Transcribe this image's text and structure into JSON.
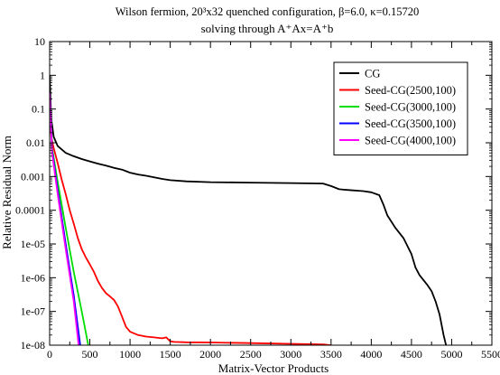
{
  "chart_data": {
    "type": "line",
    "title_line1": "Wilson fermion, 20³x32 quenched configuration, β=6.0,  κ=0.15720",
    "title_line2": "solving through  A⁺Ax=A⁺b",
    "xlabel": "Matrix-Vector Products",
    "ylabel": "Relative Residual Norm",
    "xlim": [
      0,
      5500
    ],
    "ylim": [
      1e-08,
      10
    ],
    "y_scale": "log",
    "grid": false,
    "legend_position": "top-right",
    "x_ticks": [
      0,
      500,
      1000,
      1500,
      2000,
      2500,
      3000,
      3500,
      4000,
      4500,
      5000,
      5500
    ],
    "x_tick_labels": [
      "0",
      "500",
      "1000",
      "1500",
      "2000",
      "2500",
      "3000",
      "3500",
      "4000",
      "4500",
      "5000",
      "5500"
    ],
    "y_ticks": [
      10,
      1,
      0.1,
      0.01,
      0.001,
      0.0001,
      1e-05,
      1e-06,
      1e-07,
      1e-08
    ],
    "y_tick_labels": [
      "10",
      "1",
      "0.1",
      "0.01",
      "0.001",
      "0.0001",
      "1e-05",
      "1e-06",
      "1e-07",
      "1e-08"
    ],
    "series": [
      {
        "name": "CG",
        "color": "#000000",
        "points": [
          [
            0,
            1
          ],
          [
            20,
            0.05
          ],
          [
            50,
            0.015
          ],
          [
            100,
            0.008
          ],
          [
            200,
            0.005
          ],
          [
            300,
            0.004
          ],
          [
            400,
            0.0033
          ],
          [
            500,
            0.0028
          ],
          [
            600,
            0.0024
          ],
          [
            700,
            0.0021
          ],
          [
            800,
            0.0018
          ],
          [
            900,
            0.0016
          ],
          [
            1000,
            0.0013
          ],
          [
            1100,
            0.00115
          ],
          [
            1200,
            0.00105
          ],
          [
            1300,
            0.00095
          ],
          [
            1400,
            0.00085
          ],
          [
            1500,
            0.00078
          ],
          [
            1700,
            0.00072
          ],
          [
            2000,
            0.00068
          ],
          [
            2500,
            0.00066
          ],
          [
            3000,
            0.00064
          ],
          [
            3400,
            0.00062
          ],
          [
            3500,
            0.00052
          ],
          [
            3600,
            0.00042
          ],
          [
            3700,
            0.0004
          ],
          [
            3900,
            0.00037
          ],
          [
            4000,
            0.00034
          ],
          [
            4100,
            0.00028
          ],
          [
            4150,
            0.00015
          ],
          [
            4200,
            7e-05
          ],
          [
            4300,
            3e-05
          ],
          [
            4400,
            1.5e-05
          ],
          [
            4500,
            5e-06
          ],
          [
            4550,
            2e-06
          ],
          [
            4600,
            1.2e-06
          ],
          [
            4700,
            6e-07
          ],
          [
            4750,
            4e-07
          ],
          [
            4800,
            2e-07
          ],
          [
            4850,
            8e-08
          ],
          [
            4900,
            2e-08
          ],
          [
            4930,
            1e-08
          ]
        ]
      },
      {
        "name": "Seed-CG(2500,100)",
        "color": "#ff0000",
        "points": [
          [
            0,
            0.3
          ],
          [
            20,
            0.015
          ],
          [
            50,
            0.007
          ],
          [
            100,
            0.0025
          ],
          [
            150,
            0.0008
          ],
          [
            200,
            0.0003
          ],
          [
            250,
            0.0001
          ],
          [
            300,
            4e-05
          ],
          [
            350,
            1.5e-05
          ],
          [
            400,
            7e-06
          ],
          [
            450,
            4e-06
          ],
          [
            500,
            2.5e-06
          ],
          [
            550,
            1.5e-06
          ],
          [
            600,
            8e-07
          ],
          [
            650,
            5e-07
          ],
          [
            700,
            3.5e-07
          ],
          [
            750,
            2.8e-07
          ],
          [
            800,
            2.2e-07
          ],
          [
            850,
            1.4e-07
          ],
          [
            900,
            7e-08
          ],
          [
            950,
            3.5e-08
          ],
          [
            1000,
            2.5e-08
          ],
          [
            1100,
            2e-08
          ],
          [
            1200,
            1.8e-08
          ],
          [
            1300,
            1.7e-08
          ],
          [
            1400,
            1.6e-08
          ],
          [
            1450,
            1.7e-08
          ],
          [
            1500,
            1.3e-08
          ],
          [
            1550,
            1.25e-08
          ],
          [
            1700,
            1.22e-08
          ],
          [
            2000,
            1.2e-08
          ],
          [
            2500,
            1.15e-08
          ],
          [
            3000,
            1.1e-08
          ],
          [
            3400,
            1.05e-08
          ],
          [
            3500,
            1e-08
          ]
        ]
      },
      {
        "name": "Seed-CG(3000,100)",
        "color": "#00dd00",
        "points": [
          [
            0,
            0.3
          ],
          [
            30,
            0.007
          ],
          [
            100,
            0.0007
          ],
          [
            200,
            3e-05
          ],
          [
            300,
            1.5e-06
          ],
          [
            400,
            1e-07
          ],
          [
            480,
            1e-08
          ]
        ]
      },
      {
        "name": "Seed-CG(3500,100)",
        "color": "#0000ff",
        "points": [
          [
            0,
            0.3
          ],
          [
            30,
            0.006
          ],
          [
            100,
            0.0004
          ],
          [
            200,
            1e-05
          ],
          [
            300,
            3e-07
          ],
          [
            380,
            1e-08
          ]
        ]
      },
      {
        "name": "Seed-CG(4000,100)",
        "color": "#ff00ff",
        "points": [
          [
            0,
            0.3
          ],
          [
            30,
            0.005
          ],
          [
            100,
            0.0003
          ],
          [
            200,
            7e-06
          ],
          [
            300,
            2e-07
          ],
          [
            360,
            1e-08
          ]
        ]
      }
    ]
  }
}
